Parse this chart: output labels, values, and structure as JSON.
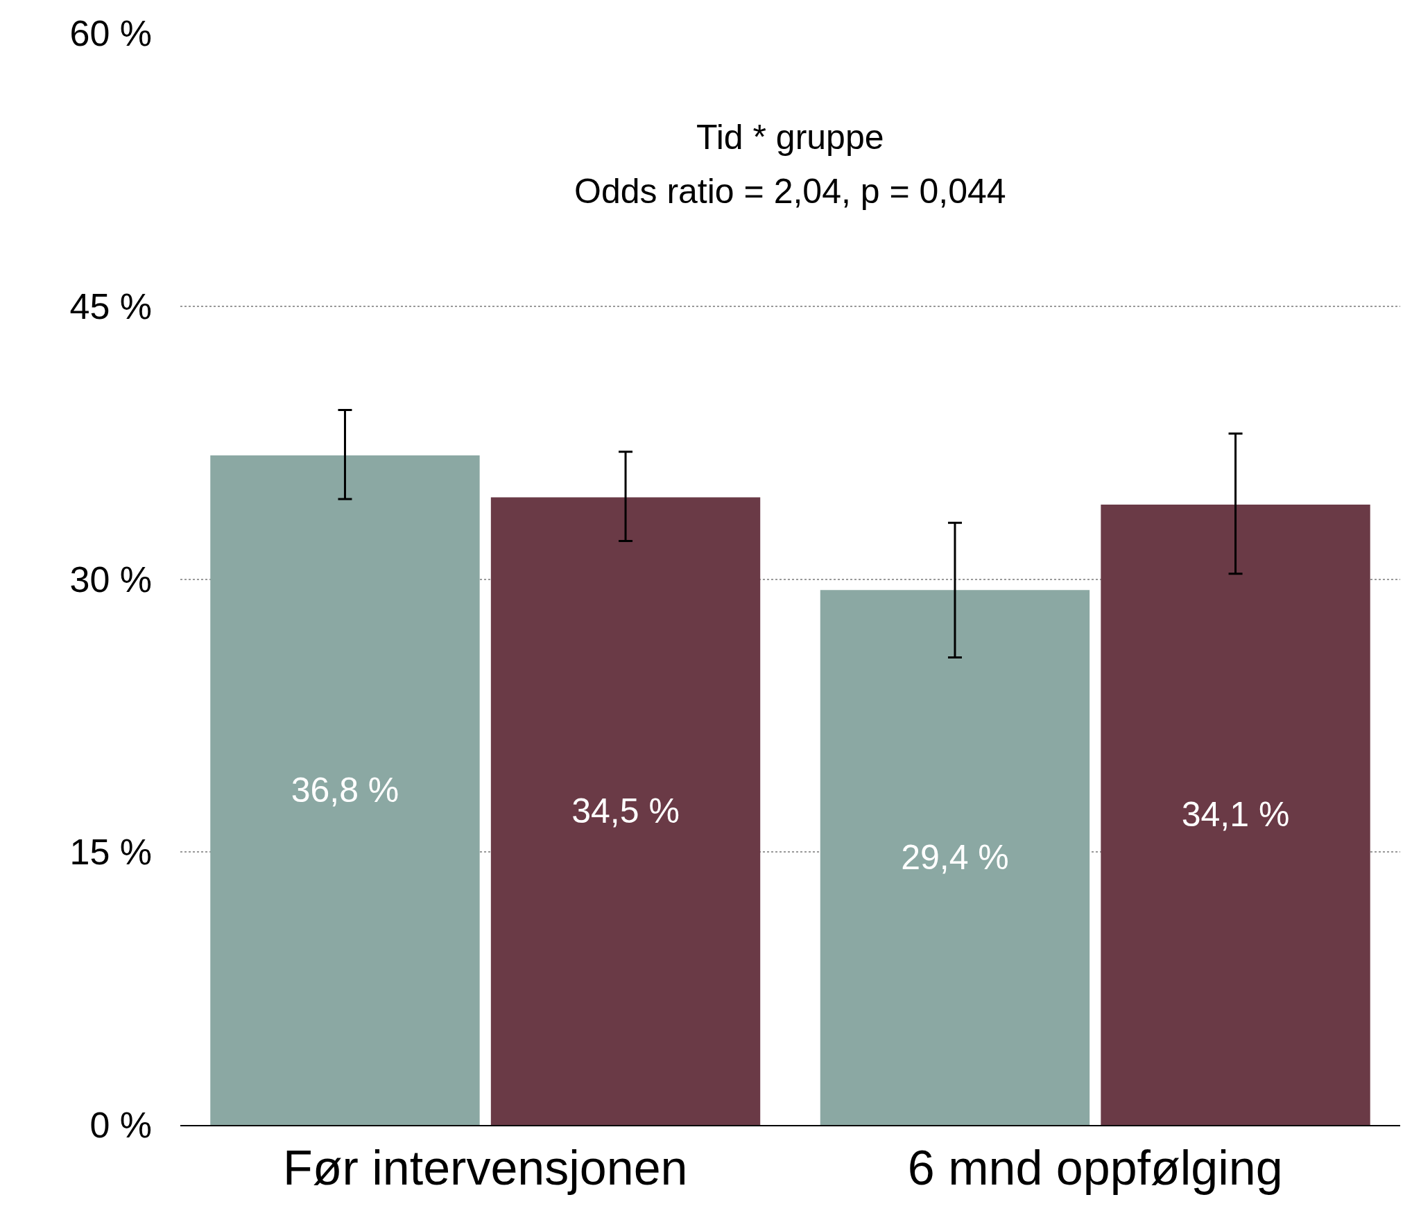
{
  "chart_data": {
    "type": "bar",
    "categories": [
      "Før intervensjonen",
      "6 mnd oppfølging"
    ],
    "series": [
      {
        "color": "#8ba8a3",
        "values": [
          36.8,
          29.4
        ],
        "errors": [
          [
            34.4,
            39.3
          ],
          [
            25.7,
            33.1
          ]
        ],
        "value_labels": [
          "36,8 %",
          "29,4 %"
        ]
      },
      {
        "color": "#6a3a46",
        "values": [
          34.5,
          34.1
        ],
        "errors": [
          [
            32.1,
            37.0
          ],
          [
            30.3,
            38.0
          ]
        ],
        "value_labels": [
          "34,5 %",
          "34,1 %"
        ]
      }
    ],
    "annotations": [
      "Tid * gruppe",
      "Odds ratio = 2,04, p = 0,044"
    ],
    "ylim": [
      0,
      60
    ],
    "yticks": [
      {
        "value": 0,
        "label": "0 %"
      },
      {
        "value": 15,
        "label": "15 %"
      },
      {
        "value": 30,
        "label": "30 %"
      },
      {
        "value": 45,
        "label": "45 %"
      },
      {
        "value": 60,
        "label": "60 %"
      }
    ],
    "grid": "y"
  }
}
